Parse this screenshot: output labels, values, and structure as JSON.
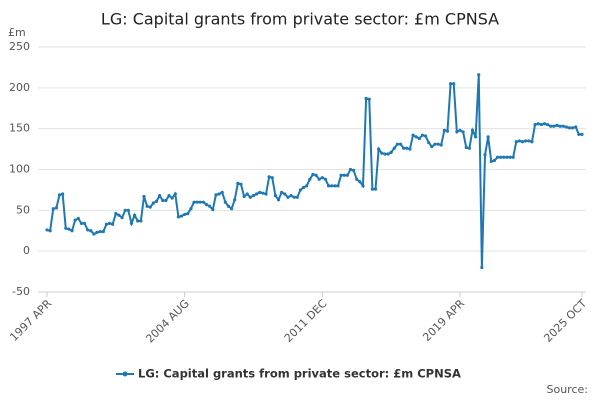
{
  "chart_data": {
    "type": "line",
    "title": "LG: Capital grants from private sector: £m CPNSA",
    "y_unit": "£m",
    "source": "Source:",
    "categories": [
      "1997 APR",
      null,
      null,
      null,
      null,
      null,
      null,
      null,
      null,
      null,
      null,
      null,
      null,
      null,
      null,
      null,
      null,
      null,
      null,
      null,
      null,
      null,
      null,
      null,
      null,
      null,
      null,
      null,
      null,
      null,
      null,
      null,
      null,
      null,
      null,
      null,
      null,
      null,
      null,
      null,
      null,
      null,
      null,
      null,
      "2004 AUG",
      null,
      null,
      null,
      null,
      null,
      null,
      null,
      null,
      null,
      null,
      null,
      null,
      null,
      null,
      null,
      null,
      null,
      null,
      null,
      null,
      null,
      null,
      null,
      null,
      null,
      null,
      null,
      null,
      null,
      null,
      null,
      null,
      null,
      null,
      null,
      null,
      null,
      null,
      null,
      null,
      null,
      null,
      null,
      "2011 DEC",
      null,
      null,
      null,
      null,
      null,
      null,
      null,
      null,
      null,
      null,
      null,
      null,
      null,
      null,
      null,
      null,
      null,
      null,
      null,
      null,
      null,
      null,
      null,
      null,
      null,
      null,
      null,
      null,
      null,
      null,
      null,
      null,
      null,
      null,
      null,
      null,
      null,
      null,
      null,
      null,
      null,
      null,
      null,
      "2019 APR",
      null,
      null,
      null,
      null,
      null,
      null,
      null,
      null,
      null,
      null,
      null,
      null,
      null,
      null,
      null,
      null,
      null,
      null,
      null,
      null,
      null,
      null,
      null,
      null,
      null,
      null,
      null,
      null,
      null,
      null,
      null,
      null,
      null,
      null,
      null,
      null,
      null,
      null,
      "2025 OCT"
    ],
    "series": [
      {
        "name": "LG: Capital grants from private sector: £m CPNSA",
        "color": "#1f78b4",
        "values": [
          26,
          25,
          52,
          53,
          69,
          70,
          28,
          27,
          25,
          38,
          40,
          34,
          34,
          26,
          25,
          21,
          23,
          24,
          24,
          33,
          34,
          33,
          46,
          44,
          41,
          50,
          50,
          34,
          44,
          37,
          37,
          67,
          55,
          54,
          59,
          61,
          68,
          62,
          62,
          68,
          65,
          70,
          42,
          43,
          45,
          46,
          52,
          60,
          60,
          60,
          60,
          57,
          55,
          51,
          69,
          70,
          72,
          60,
          55,
          52,
          63,
          83,
          82,
          67,
          70,
          66,
          68,
          70,
          72,
          71,
          70,
          91,
          90,
          68,
          63,
          72,
          70,
          66,
          68,
          66,
          66,
          75,
          78,
          80,
          88,
          94,
          93,
          88,
          90,
          88,
          80,
          80,
          80,
          80,
          93,
          93,
          93,
          100,
          99,
          88,
          85,
          80,
          187,
          186,
          76,
          76,
          125,
          120,
          119,
          119,
          121,
          126,
          131,
          131,
          126,
          126,
          125,
          142,
          140,
          138,
          142,
          141,
          133,
          128,
          131,
          131,
          130,
          148,
          147,
          205,
          205,
          146,
          148,
          146,
          127,
          126,
          148,
          140,
          216,
          -20,
          118,
          140,
          110,
          111,
          115,
          115,
          115,
          115,
          115,
          115,
          134,
          135,
          134,
          135,
          135,
          134,
          155,
          156,
          155,
          156,
          155,
          153,
          153,
          154,
          153,
          153,
          152,
          151,
          151,
          152,
          143,
          143
        ]
      }
    ],
    "ylim": [
      -50,
      250
    ],
    "yticks": [
      -50,
      0,
      50,
      100,
      150,
      200,
      250
    ],
    "grid": true
  }
}
